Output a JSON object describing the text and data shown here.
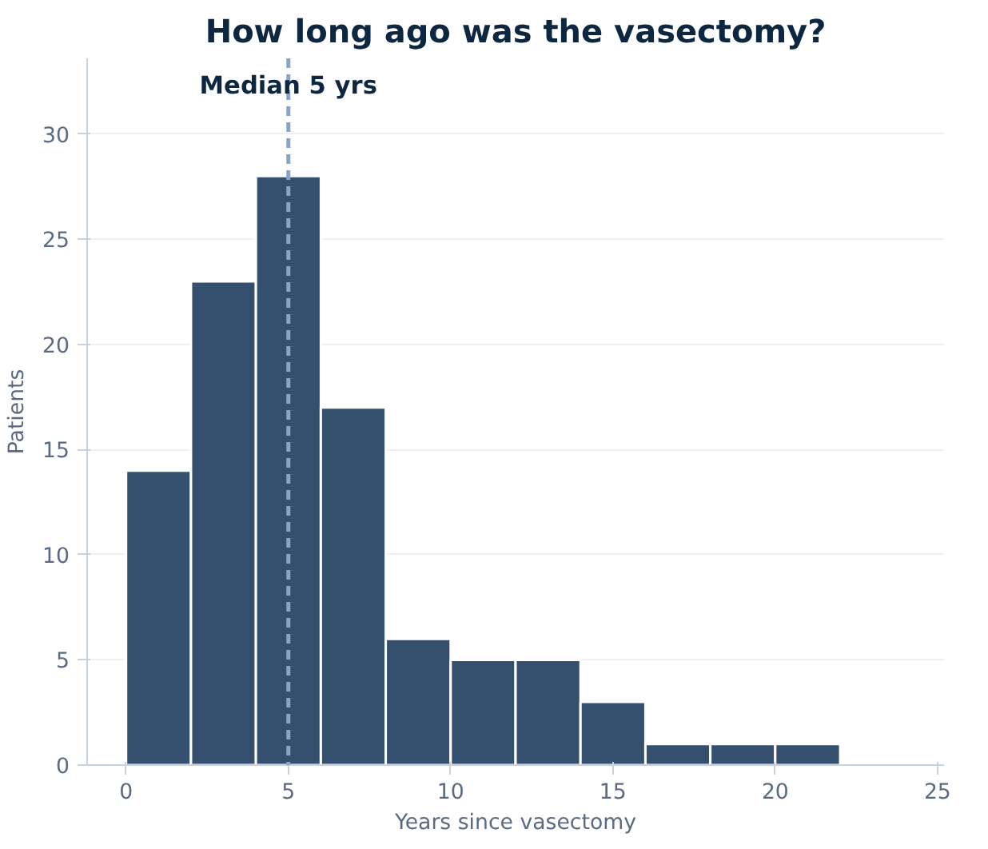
{
  "chart_data": {
    "type": "histogram",
    "title": "How long ago was the vasectomy?",
    "xlabel": "Years since vasectomy",
    "ylabel": "Patients",
    "bins": [
      0,
      2,
      4,
      6,
      8,
      10,
      12,
      14,
      16,
      18,
      20,
      22
    ],
    "values": [
      14,
      23,
      28,
      17,
      6,
      5,
      5,
      3,
      1,
      1,
      1
    ],
    "color": "#34506e",
    "xlim": [
      -1.2,
      25.2
    ],
    "xticks": [
      0,
      5,
      10,
      15,
      20,
      25
    ],
    "ylim": [
      0,
      33.6
    ],
    "yticks": [
      0,
      5,
      10,
      15,
      20,
      25,
      30
    ],
    "grid": "y",
    "ref_lines": [
      {
        "axis": "x",
        "value": 5,
        "label": "Median 5 yrs",
        "color": "#8aa4c4",
        "line_style": "dashed"
      }
    ]
  }
}
